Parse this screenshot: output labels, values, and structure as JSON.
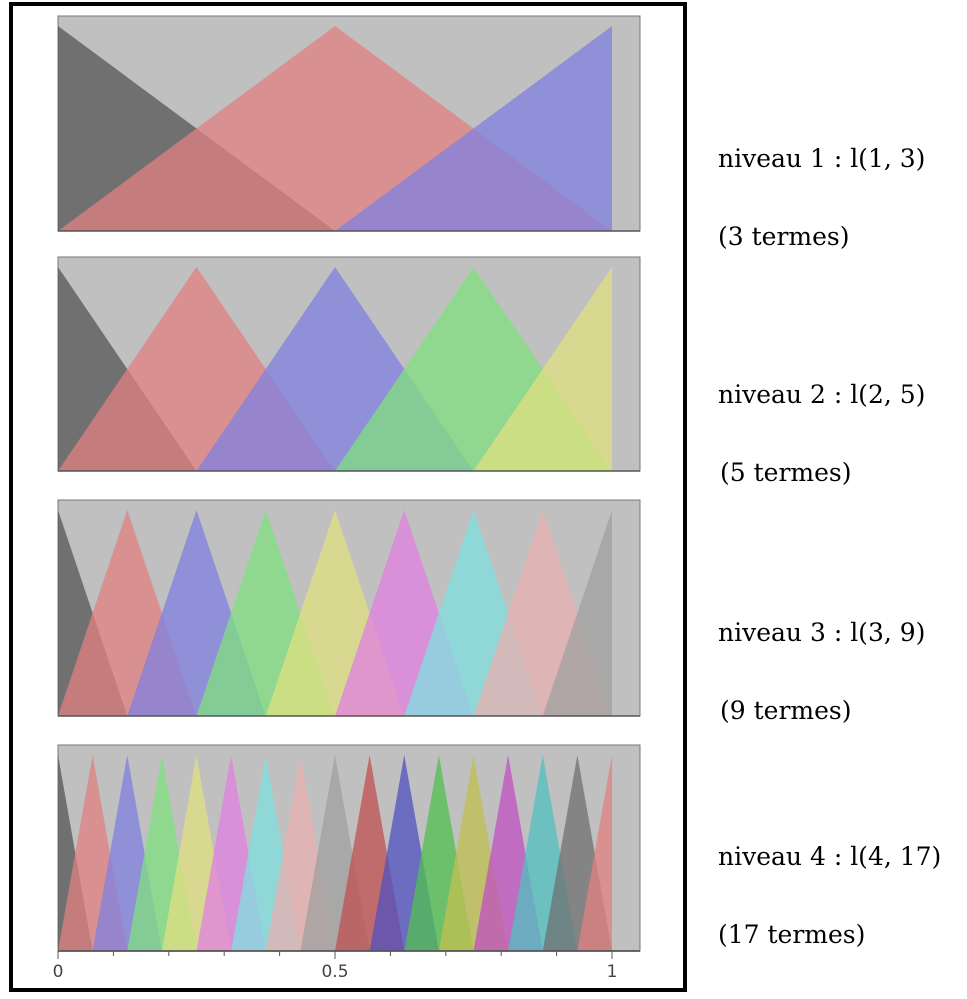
{
  "levels": [
    {
      "label": "niveau 1 : l(1, 3)",
      "count": "(3 termes)",
      "n": 3,
      "colors": [
        "#555555",
        "#e08080",
        "#8080e0"
      ]
    },
    {
      "label": "niveau 2 : l(2, 5)",
      "count": "(5 termes)",
      "n": 5,
      "colors": [
        "#555555",
        "#e08080",
        "#8080e0",
        "#80e080",
        "#e0e080"
      ]
    },
    {
      "label": "niveau 3 : l(3, 9)",
      "count": "(9 termes)",
      "n": 9,
      "colors": [
        "#555555",
        "#e08080",
        "#8080e0",
        "#80e080",
        "#e0e080",
        "#e080e0",
        "#80e0e0",
        "#e8b0b0",
        "#a0a0a0"
      ]
    },
    {
      "label": "niveau 4 : l(4, 17)",
      "count": "(17 termes)",
      "n": 17,
      "colors": [
        "#555555",
        "#e08080",
        "#8080e0",
        "#80e080",
        "#e0e080",
        "#e080e0",
        "#80e0e0",
        "#e8b0b0",
        "#a0a0a0",
        "#c05050",
        "#5050c0",
        "#50c050",
        "#c0c050",
        "#c050c0",
        "#50c0c0",
        "#707070",
        "#e08080"
      ]
    }
  ],
  "axis": {
    "ticks": [
      {
        "value": 0,
        "label": "0"
      },
      {
        "value": 0.5,
        "label": "0.5"
      },
      {
        "value": 1,
        "label": "1"
      }
    ]
  },
  "colors": {
    "background": "#c0c0c0",
    "frame": "#000000"
  }
}
